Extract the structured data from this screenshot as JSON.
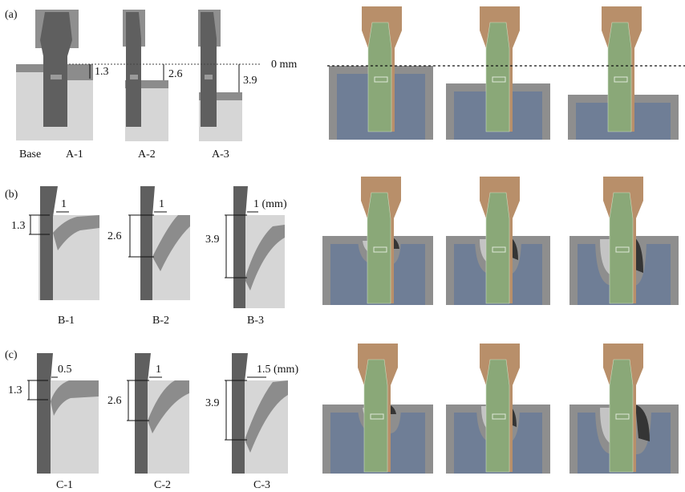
{
  "panels": {
    "a": {
      "tag": "(a)",
      "zero_label": "0 mm",
      "base_label": "Base",
      "items": [
        {
          "name": "A-1",
          "depth": "1.3"
        },
        {
          "name": "A-2",
          "depth": "2.6"
        },
        {
          "name": "A-3",
          "depth": "3.9"
        }
      ]
    },
    "b": {
      "tag": "(b)",
      "items": [
        {
          "name": "B-1",
          "depth": "1.3",
          "width": "1"
        },
        {
          "name": "B-2",
          "depth": "2.6",
          "width": "1"
        },
        {
          "name": "B-3",
          "depth": "3.9",
          "width": "1 (mm)"
        }
      ]
    },
    "c": {
      "tag": "(c)",
      "items": [
        {
          "name": "C-1",
          "depth": "1.3",
          "width": "0.5"
        },
        {
          "name": "C-2",
          "depth": "2.6",
          "width": "1"
        },
        {
          "name": "C-3",
          "depth": "3.9",
          "width": "1.5 (mm)"
        }
      ]
    }
  },
  "colors": {
    "bg": "#ffffff",
    "gray_block": "#8f8f8f",
    "tool_dark": "#5f5f5f",
    "base_light": "#d6d6d6",
    "sheet_mid": "#8c8c8c",
    "model_gray": "#8e8e8e",
    "model_blue": "#6f7e96",
    "model_green": "#8aa878",
    "model_brown": "#b88f6a",
    "model_lightgray": "#c4c4c4",
    "model_dark": "#353535"
  }
}
